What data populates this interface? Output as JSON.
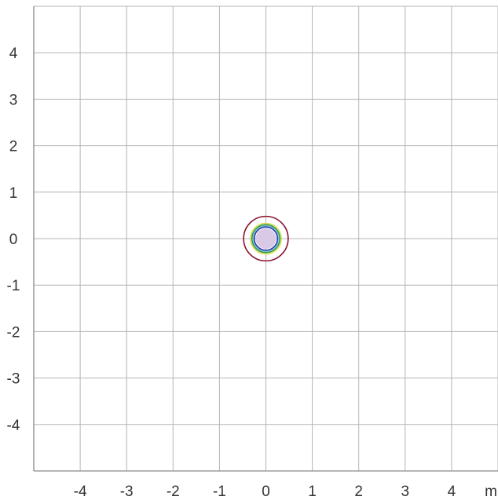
{
  "chart_data": {
    "type": "line",
    "title": "",
    "xlabel": "",
    "ylabel": "",
    "x_unit": "m",
    "xlim": [
      -5,
      5
    ],
    "ylim": [
      -5,
      5
    ],
    "x_ticks": [
      -4,
      -3,
      -2,
      -1,
      0,
      1,
      2,
      3,
      4
    ],
    "y_ticks": [
      4,
      3,
      2,
      1,
      0,
      -1,
      -2,
      -3,
      -4
    ],
    "grid": true,
    "legend": "none",
    "series": [
      {
        "shape": "filled-disc",
        "center": [
          0,
          0
        ],
        "radius": 0.22,
        "color": "#d9c8e6"
      },
      {
        "shape": "contour",
        "center": [
          0,
          0
        ],
        "radius": 0.27,
        "color": "#7fbfe0"
      },
      {
        "shape": "contour",
        "center": [
          0,
          0
        ],
        "radius": 0.33,
        "color": "#d8d84a"
      },
      {
        "shape": "contour",
        "center": [
          0,
          0
        ],
        "radius": 0.3,
        "color": "#2a9a4a"
      },
      {
        "shape": "contour",
        "center": [
          0,
          0
        ],
        "radius": 0.25,
        "color": "#2a3fb0"
      },
      {
        "shape": "contour",
        "center": [
          0,
          0
        ],
        "radius": 0.48,
        "color": "#8a1030"
      }
    ]
  }
}
